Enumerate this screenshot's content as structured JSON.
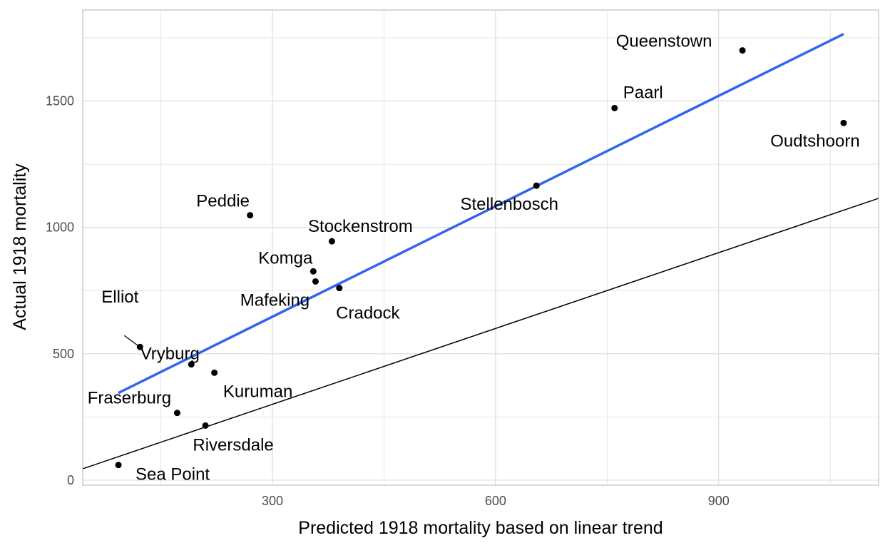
{
  "chart_data": {
    "type": "scatter",
    "xlabel": "Predicted 1918 mortality based on linear trend",
    "ylabel": "Actual 1918 mortality",
    "xlim": [
      45,
      1115
    ],
    "ylim": [
      -20,
      1860
    ],
    "x_ticks": [
      300,
      600,
      900
    ],
    "x_tick_labels": [
      "300",
      "600",
      "900"
    ],
    "y_ticks": [
      0,
      500,
      1000,
      1500
    ],
    "y_tick_labels": [
      "0",
      "500",
      "1000",
      "1500"
    ],
    "grid": true,
    "legend": "none",
    "points": [
      {
        "label": "Queenstown",
        "x": 932,
        "y": 1700
      },
      {
        "label": "Paarl",
        "x": 760,
        "y": 1472
      },
      {
        "label": "Oudtshoorn",
        "x": 1068,
        "y": 1413
      },
      {
        "label": "Stellenbosch",
        "x": 655,
        "y": 1165
      },
      {
        "label": "Peddie",
        "x": 270,
        "y": 1048
      },
      {
        "label": "Stockenstrom",
        "x": 380,
        "y": 945
      },
      {
        "label": "Komga",
        "x": 355,
        "y": 826
      },
      {
        "label": "Mafeking",
        "x": 358,
        "y": 786
      },
      {
        "label": "Cradock",
        "x": 390,
        "y": 760
      },
      {
        "label": "Elliot",
        "x": 122,
        "y": 527
      },
      {
        "label": "Vryburg",
        "x": 191,
        "y": 458
      },
      {
        "label": "Kuruman",
        "x": 222,
        "y": 425
      },
      {
        "label": "Fraserburg",
        "x": 172,
        "y": 266
      },
      {
        "label": "Riversdale",
        "x": 210,
        "y": 216
      },
      {
        "label": "Sea Point",
        "x": 93,
        "y": 60
      }
    ],
    "fit_line": {
      "color": "#3366ee",
      "x": [
        93,
        1068
      ],
      "y": [
        345,
        1765
      ]
    },
    "reference_line": {
      "color": "#000000",
      "slope": 1,
      "intercept": 0
    }
  },
  "colors": {
    "point": "#000000",
    "grid": "#dddddd",
    "panel_border": "#b3b3b3"
  }
}
